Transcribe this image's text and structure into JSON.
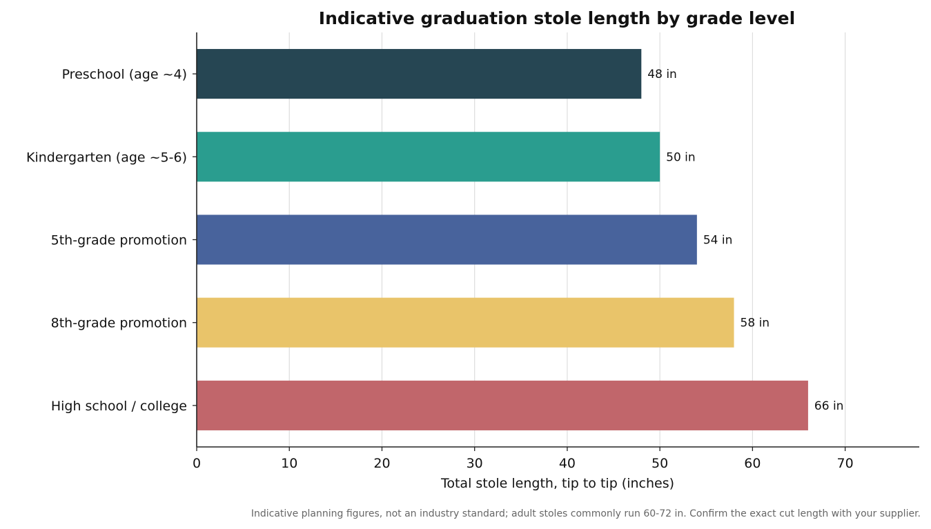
{
  "chart_data": {
    "type": "bar",
    "orientation": "horizontal",
    "title": "Indicative graduation stole length by grade level",
    "xlabel": "Total stole length, tip to tip (inches)",
    "ylabel": "",
    "xlim": [
      0,
      78
    ],
    "xticks": [
      0,
      10,
      20,
      30,
      40,
      50,
      60,
      70
    ],
    "grid": "vertical",
    "categories": [
      "Preschool (age ~4)",
      "Kindergarten (age ~5-6)",
      "5th-grade promotion",
      "8th-grade promotion",
      "High school / college"
    ],
    "values": [
      48,
      50,
      54,
      58,
      66
    ],
    "value_labels": [
      "48 in",
      "50 in",
      "54 in",
      "58 in",
      "66 in"
    ],
    "colors": [
      "#264653",
      "#2a9d8f",
      "#48639c",
      "#e9c46a",
      "#c1666b"
    ]
  },
  "footnote": "Indicative planning figures, not an industry standard; adult stoles commonly run 60-72 in. Confirm the exact cut length with your supplier."
}
